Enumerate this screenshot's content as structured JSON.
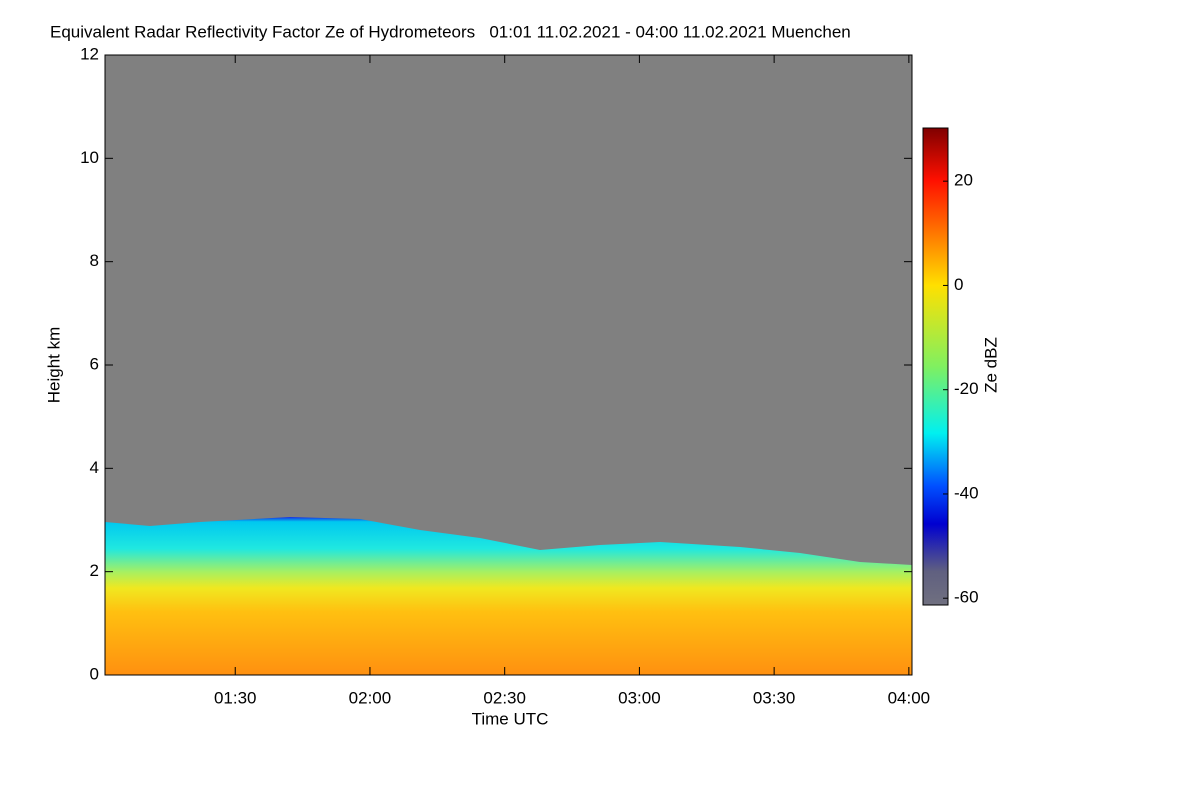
{
  "chart_data": {
    "type": "heatmap",
    "title": "Equivalent Radar Reflectivity Factor Ze of Hydrometeors   01:01 11.02.2021 - 04:00 11.02.2021 Muenchen",
    "x_label": "Time UTC",
    "y_label": "Height km",
    "xlim": [
      61,
      240.7
    ],
    "xticks": [
      {
        "value": 90,
        "label": "01:30"
      },
      {
        "value": 120,
        "label": "02:00"
      },
      {
        "value": 150,
        "label": "02:30"
      },
      {
        "value": 180,
        "label": "03:00"
      },
      {
        "value": 210,
        "label": "03:30"
      },
      {
        "value": 240,
        "label": "04:00"
      }
    ],
    "ylim": [
      0,
      12
    ],
    "yticks": [
      0,
      2,
      4,
      6,
      8,
      10,
      12
    ],
    "colorbar": {
      "label": "Ze dBZ",
      "lim": [
        -61.3,
        30.2
      ],
      "ticks": [
        -60,
        -40,
        -20,
        0,
        20
      ]
    }
  }
}
